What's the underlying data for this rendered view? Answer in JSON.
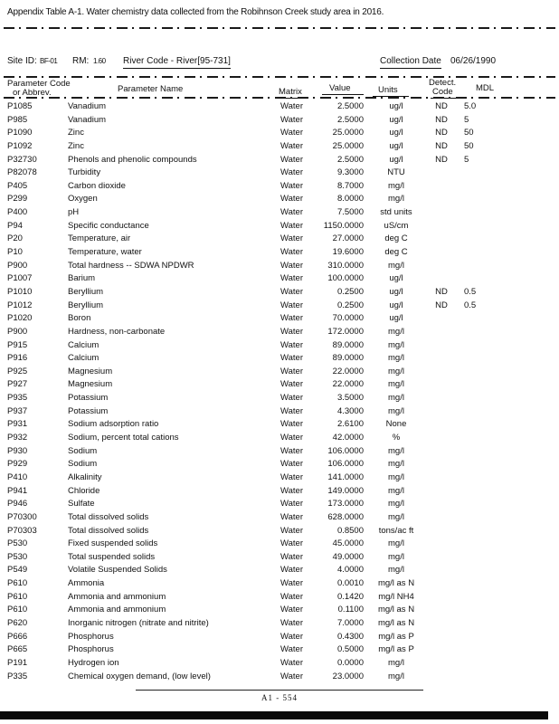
{
  "page": {
    "title": "Appendix Table A-1. Water chemistry data collected from the Robihnson Creek study area in 2016.",
    "footer": "A1 - 554"
  },
  "site_info": {
    "site_id_label": "Site ID:",
    "site_id_value": "BF-01",
    "rm_label": "RM:",
    "rm_value": "1.60",
    "river_code": "River Code - River[95-731]",
    "collection_date_label": "Collection Date",
    "collection_date_value": "06/26/1990"
  },
  "columns": {
    "code_line1": "Parameter Code",
    "code_line2": "or Abbrev.",
    "name": "Parameter Name",
    "matrix": "Matrix",
    "value": "Value",
    "units": "Units",
    "detect_line1": "Detect.",
    "detect_line2": "Code",
    "mdl": "MDL"
  },
  "rows": [
    {
      "code": "P1085",
      "name": "Vanadium",
      "matrix": "Water",
      "value": "2.5000",
      "units": "ug/l",
      "detect": "ND",
      "mdl": "5.0"
    },
    {
      "code": "P985",
      "name": "Vanadium",
      "matrix": "Water",
      "value": "2.5000",
      "units": "ug/l",
      "detect": "ND",
      "mdl": "5"
    },
    {
      "code": "P1090",
      "name": "Zinc",
      "matrix": "Water",
      "value": "25.0000",
      "units": "ug/l",
      "detect": "ND",
      "mdl": "50"
    },
    {
      "code": "P1092",
      "name": "Zinc",
      "matrix": "Water",
      "value": "25.0000",
      "units": "ug/l",
      "detect": "ND",
      "mdl": "50"
    },
    {
      "code": "P32730",
      "name": "Phenols and phenolic compounds",
      "matrix": "Water",
      "value": "2.5000",
      "units": "ug/l",
      "detect": "ND",
      "mdl": "5"
    },
    {
      "code": "P82078",
      "name": "Turbidity",
      "matrix": "Water",
      "value": "9.3000",
      "units": "NTU",
      "detect": "",
      "mdl": ""
    },
    {
      "code": "P405",
      "name": "Carbon dioxide",
      "matrix": "Water",
      "value": "8.7000",
      "units": "mg/l",
      "detect": "",
      "mdl": ""
    },
    {
      "code": "P299",
      "name": "Oxygen",
      "matrix": "Water",
      "value": "8.0000",
      "units": "mg/l",
      "detect": "",
      "mdl": ""
    },
    {
      "code": "P400",
      "name": "pH",
      "matrix": "Water",
      "value": "7.5000",
      "units": "std units",
      "detect": "",
      "mdl": ""
    },
    {
      "code": "P94",
      "name": "Specific conductance",
      "matrix": "Water",
      "value": "1150.0000",
      "units": "uS/cm",
      "detect": "",
      "mdl": ""
    },
    {
      "code": "P20",
      "name": "Temperature, air",
      "matrix": "Water",
      "value": "27.0000",
      "units": "deg C",
      "detect": "",
      "mdl": ""
    },
    {
      "code": "P10",
      "name": "Temperature, water",
      "matrix": "Water",
      "value": "19.6000",
      "units": "deg C",
      "detect": "",
      "mdl": ""
    },
    {
      "code": "P900",
      "name": "Total hardness -- SDWA NPDWR",
      "matrix": "Water",
      "value": "310.0000",
      "units": "mg/l",
      "detect": "",
      "mdl": ""
    },
    {
      "code": "P1007",
      "name": "Barium",
      "matrix": "Water",
      "value": "100.0000",
      "units": "ug/l",
      "detect": "",
      "mdl": ""
    },
    {
      "code": "P1010",
      "name": "Beryllium",
      "matrix": "Water",
      "value": "0.2500",
      "units": "ug/l",
      "detect": "ND",
      "mdl": "0.5"
    },
    {
      "code": "P1012",
      "name": "Beryllium",
      "matrix": "Water",
      "value": "0.2500",
      "units": "ug/l",
      "detect": "ND",
      "mdl": "0.5"
    },
    {
      "code": "P1020",
      "name": "Boron",
      "matrix": "Water",
      "value": "70.0000",
      "units": "ug/l",
      "detect": "",
      "mdl": ""
    },
    {
      "code": "P900",
      "name": "Hardness, non-carbonate",
      "matrix": "Water",
      "value": "172.0000",
      "units": "mg/l",
      "detect": "",
      "mdl": ""
    },
    {
      "code": "P915",
      "name": "Calcium",
      "matrix": "Water",
      "value": "89.0000",
      "units": "mg/l",
      "detect": "",
      "mdl": ""
    },
    {
      "code": "P916",
      "name": "Calcium",
      "matrix": "Water",
      "value": "89.0000",
      "units": "mg/l",
      "detect": "",
      "mdl": ""
    },
    {
      "code": "P925",
      "name": "Magnesium",
      "matrix": "Water",
      "value": "22.0000",
      "units": "mg/l",
      "detect": "",
      "mdl": ""
    },
    {
      "code": "P927",
      "name": "Magnesium",
      "matrix": "Water",
      "value": "22.0000",
      "units": "mg/l",
      "detect": "",
      "mdl": ""
    },
    {
      "code": "P935",
      "name": "Potassium",
      "matrix": "Water",
      "value": "3.5000",
      "units": "mg/l",
      "detect": "",
      "mdl": ""
    },
    {
      "code": "P937",
      "name": "Potassium",
      "matrix": "Water",
      "value": "4.3000",
      "units": "mg/l",
      "detect": "",
      "mdl": ""
    },
    {
      "code": "P931",
      "name": "Sodium adsorption ratio",
      "matrix": "Water",
      "value": "2.6100",
      "units": "None",
      "detect": "",
      "mdl": ""
    },
    {
      "code": "P932",
      "name": "Sodium, percent total cations",
      "matrix": "Water",
      "value": "42.0000",
      "units": "%",
      "detect": "",
      "mdl": ""
    },
    {
      "code": "P930",
      "name": "Sodium",
      "matrix": "Water",
      "value": "106.0000",
      "units": "mg/l",
      "detect": "",
      "mdl": ""
    },
    {
      "code": "P929",
      "name": "Sodium",
      "matrix": "Water",
      "value": "106.0000",
      "units": "mg/l",
      "detect": "",
      "mdl": ""
    },
    {
      "code": "P410",
      "name": "Alkalinity",
      "matrix": "Water",
      "value": "141.0000",
      "units": "mg/l",
      "detect": "",
      "mdl": ""
    },
    {
      "code": "P941",
      "name": "Chloride",
      "matrix": "Water",
      "value": "149.0000",
      "units": "mg/l",
      "detect": "",
      "mdl": ""
    },
    {
      "code": "P946",
      "name": "Sulfate",
      "matrix": "Water",
      "value": "173.0000",
      "units": "mg/l",
      "detect": "",
      "mdl": ""
    },
    {
      "code": "P70300",
      "name": "Total dissolved solids",
      "matrix": "Water",
      "value": "628.0000",
      "units": "mg/l",
      "detect": "",
      "mdl": ""
    },
    {
      "code": "P70303",
      "name": "Total dissolved solids",
      "matrix": "Water",
      "value": "0.8500",
      "units": "tons/ac ft",
      "detect": "",
      "mdl": ""
    },
    {
      "code": "P530",
      "name": "Fixed suspended solids",
      "matrix": "Water",
      "value": "45.0000",
      "units": "mg/l",
      "detect": "",
      "mdl": ""
    },
    {
      "code": "P530",
      "name": "Total suspended solids",
      "matrix": "Water",
      "value": "49.0000",
      "units": "mg/l",
      "detect": "",
      "mdl": ""
    },
    {
      "code": "P549",
      "name": "Volatile Suspended Solids",
      "matrix": "Water",
      "value": "4.0000",
      "units": "mg/l",
      "detect": "",
      "mdl": ""
    },
    {
      "code": "P610",
      "name": "Ammonia",
      "matrix": "Water",
      "value": "0.0010",
      "units": "mg/l as N",
      "detect": "",
      "mdl": ""
    },
    {
      "code": "P610",
      "name": "Ammonia and ammonium",
      "matrix": "Water",
      "value": "0.1420",
      "units": "mg/l NH4",
      "detect": "",
      "mdl": ""
    },
    {
      "code": "P610",
      "name": "Ammonia and ammonium",
      "matrix": "Water",
      "value": "0.1100",
      "units": "mg/l as N",
      "detect": "",
      "mdl": ""
    },
    {
      "code": "P620",
      "name": "Inorganic nitrogen (nitrate and nitrite)",
      "matrix": "Water",
      "value": "7.0000",
      "units": "mg/l as N",
      "detect": "",
      "mdl": ""
    },
    {
      "code": "P666",
      "name": "Phosphorus",
      "matrix": "Water",
      "value": "0.4300",
      "units": "mg/l as P",
      "detect": "",
      "mdl": ""
    },
    {
      "code": "P665",
      "name": "Phosphorus",
      "matrix": "Water",
      "value": "0.5000",
      "units": "mg/l as P",
      "detect": "",
      "mdl": ""
    },
    {
      "code": "P191",
      "name": "Hydrogen ion",
      "matrix": "Water",
      "value": "0.0000",
      "units": "mg/l",
      "detect": "",
      "mdl": ""
    },
    {
      "code": "P335",
      "name": "Chemical oxygen demand, (low level)",
      "matrix": "Water",
      "value": "23.0000",
      "units": "mg/l",
      "detect": "",
      "mdl": ""
    }
  ]
}
